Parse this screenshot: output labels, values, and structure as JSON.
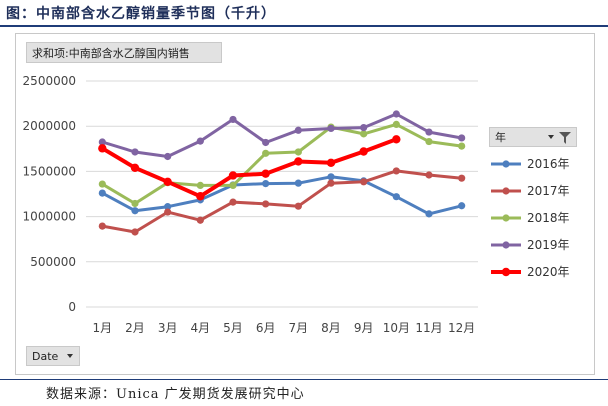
{
  "title": "图：中南部含水乙醇销量季节图（千升）",
  "source": "数据来源：Unica 广发期货发展研究中心",
  "pivot": {
    "value_field": "求和项:中南部含水乙醇国内销售",
    "axis_field": "Date",
    "legend_field": "年"
  },
  "chart_data": {
    "type": "line",
    "title": "",
    "xlabel": "",
    "ylabel": "",
    "categories": [
      "1月",
      "2月",
      "3月",
      "4月",
      "5月",
      "6月",
      "7月",
      "8月",
      "9月",
      "10月",
      "11月",
      "12月"
    ],
    "y_ticks": [
      "0",
      "500000",
      "1000000",
      "1500000",
      "2000000",
      "2500000"
    ],
    "ylim": [
      0,
      2500000
    ],
    "grid": true,
    "legend_position": "right",
    "series": [
      {
        "name": "2016年",
        "color": "#4e7fbf",
        "width": 3,
        "values": [
          1260000,
          1065000,
          1110000,
          1185000,
          1350000,
          1365000,
          1370000,
          1440000,
          1395000,
          1220000,
          1030000,
          1120000
        ]
      },
      {
        "name": "2017年",
        "color": "#c0504d",
        "width": 3,
        "values": [
          895000,
          830000,
          1050000,
          960000,
          1160000,
          1140000,
          1115000,
          1370000,
          1385000,
          1505000,
          1460000,
          1425000
        ]
      },
      {
        "name": "2018年",
        "color": "#9bbb59",
        "width": 3,
        "values": [
          1360000,
          1145000,
          1375000,
          1345000,
          1345000,
          1700000,
          1715000,
          1990000,
          1915000,
          2020000,
          1830000,
          1780000
        ]
      },
      {
        "name": "2019年",
        "color": "#8064a2",
        "width": 3,
        "values": [
          1825000,
          1715000,
          1665000,
          1835000,
          2075000,
          1820000,
          1955000,
          1975000,
          1985000,
          2135000,
          1935000,
          1870000
        ]
      },
      {
        "name": "2020年",
        "color": "#ff0000",
        "width": 4,
        "values": [
          1755000,
          1540000,
          1385000,
          1225000,
          1455000,
          1475000,
          1610000,
          1595000,
          1720000,
          1855000,
          null,
          null
        ]
      }
    ]
  }
}
